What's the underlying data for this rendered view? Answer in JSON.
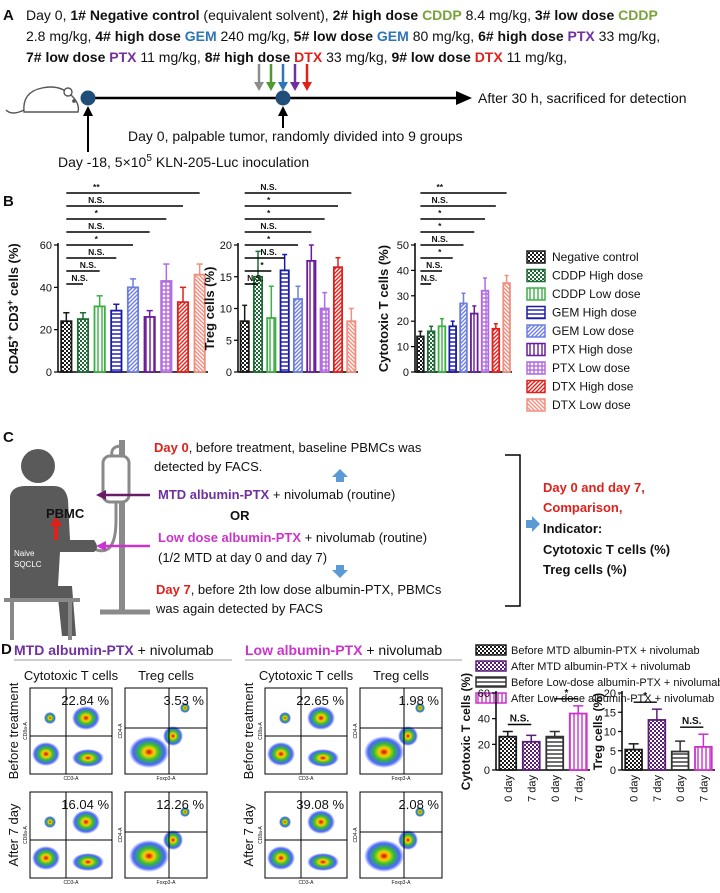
{
  "labels": {
    "a": "A",
    "b": "B",
    "c": "C",
    "d": "D"
  },
  "panel_a": {
    "protocol": [
      [
        "Day 0,",
        "1# Negative control",
        "(equivalent solvent),",
        "2# high dose",
        "CDDP",
        "8.4 mg/kg,",
        "3# low dose",
        "CDDP"
      ],
      [
        "2.8 mg/kg,",
        "4# high dose",
        "GEM",
        "240 mg/kg,",
        "5# low dose",
        "GEM",
        "80 mg/kg,",
        "6# high dose",
        "PTX",
        "33 mg/kg,"
      ],
      [
        "7# low dose",
        "PTX",
        "11 mg/kg,",
        "8# high dose",
        "DTX",
        "33 mg/kg,",
        "9# low dose",
        "DTX",
        "11 mg/kg,"
      ]
    ],
    "endpoint": "After 30 h, sacrificed for detection",
    "grouping": "Day 0, palpable tumor, randomly divided into 9 groups",
    "inoculation": [
      "Day -18, 5×10",
      "5",
      "KLN-205-Luc inoculation"
    ]
  },
  "panel_b": {
    "legend": [
      {
        "name": "Negative control",
        "color": "#1a1a1a"
      },
      {
        "name": "CDDP High dose",
        "color": "#1e6b35"
      },
      {
        "name": "CDDP Low dose",
        "color": "#3cb043"
      },
      {
        "name": "GEM High dose",
        "color": "#1a1aa6"
      },
      {
        "name": "GEM Low dose",
        "color": "#6d7fe0"
      },
      {
        "name": "PTX High dose",
        "color": "#6a1b9a"
      },
      {
        "name": "PTX Low dose",
        "color": "#b36ae2"
      },
      {
        "name": "DTX High dose",
        "color": "#e0201b"
      },
      {
        "name": "DTX Low dose",
        "color": "#f08f80"
      }
    ]
  },
  "panel_c": {
    "day0": [
      "Day 0",
      ", before treatment, baseline PBMCs was",
      "detected by FACS."
    ],
    "mtd": [
      "MTD albumin-PTX",
      "+ nivolumab (routine)"
    ],
    "or": "OR",
    "low": [
      "Low dose albumin-PTX",
      "+ nivolumab (routine)"
    ],
    "low_note": "(1/2 MTD at day 0 and day 7)",
    "day7": [
      "Day 7",
      ", before 2th low dose albumin-PTX, PBMCs",
      "was again detected by FACS"
    ],
    "patient": [
      "PBMC",
      "Naive",
      "SQCLC"
    ],
    "summary": [
      "Day 0 and day 7,",
      "Comparison,",
      "Indicator:",
      "Cytotoxic T cells (%)",
      "Treg cells (%)"
    ]
  },
  "panel_d": {
    "groups": [
      [
        "MTD albumin-PTX",
        "+ nivolumab"
      ],
      [
        "Low albumin-PTX",
        "+ nivolumab"
      ]
    ],
    "columns": [
      "Cytotoxic T cells",
      "Treg cells"
    ],
    "rows": [
      "Before treatment",
      "After 7 day"
    ],
    "axes": {
      "cd8": "CD8a-A",
      "cd3": "CD3-A",
      "cd4": "CD4-A",
      "foxp3": "Foxp3-A"
    },
    "percentages": [
      [
        "22.84 %",
        "3.53 %",
        "22.65 %",
        "1.98 %"
      ],
      [
        "16.04 %",
        "12.26 %",
        "39.08 %",
        "2.08 %"
      ]
    ],
    "legend": [
      {
        "name": "Before MTD albumin-PTX + nivolumab",
        "color": "#1a1a1a"
      },
      {
        "name": "After MTD albumin-PTX + nivolumab",
        "color": "#5b1f7a"
      },
      {
        "name": "Before Low-dose albumin-PTX + nivolumab",
        "color": "#333333"
      },
      {
        "name": "After Low-dose albumin-PTX + nivolumab",
        "color": "#cc33cc"
      }
    ]
  },
  "chart_data": [
    {
      "type": "bar",
      "ylabel": [
        "CD45",
        "+",
        "CD3",
        "+",
        "cells (%)"
      ],
      "values": [
        24,
        25,
        31,
        29,
        40,
        26,
        43,
        33,
        46
      ],
      "errors": [
        4,
        3,
        5,
        3,
        4,
        3,
        8,
        7,
        5
      ],
      "ylim": [
        0,
        60
      ],
      "yticks": [
        0,
        20,
        40,
        60
      ],
      "significance": [
        "N.S.",
        "N.S.",
        "N.S.",
        "*",
        "N.S.",
        "*",
        "N.S.",
        "**"
      ]
    },
    {
      "type": "bar",
      "ylabel": "Treg cells (%)",
      "values": [
        8,
        15,
        8.5,
        16,
        11.5,
        17.5,
        10,
        16.5,
        8
      ],
      "errors": [
        2.5,
        4,
        5,
        2.5,
        2,
        2.5,
        2.5,
        1.5,
        2
      ],
      "ylim": [
        0,
        20
      ],
      "yticks": [
        0,
        5,
        10,
        15,
        20
      ],
      "significance": [
        "N.S.",
        "*",
        "N.S.",
        "*",
        "N.S.",
        "*",
        "*",
        "N.S."
      ]
    },
    {
      "type": "bar",
      "ylabel": "Cytotoxic T cells (%)",
      "values": [
        14,
        16,
        18,
        18,
        27,
        23,
        32,
        17,
        35
      ],
      "errors": [
        2,
        2,
        3,
        2,
        4,
        3,
        5,
        2,
        3
      ],
      "ylim": [
        0,
        50
      ],
      "yticks": [
        0,
        10,
        20,
        30,
        40,
        50
      ],
      "significance": [
        "N.S.",
        "N.S.",
        "*",
        "N.S.",
        "*",
        "*",
        "N.S.",
        "**"
      ]
    },
    {
      "type": "bar",
      "ylabel": "Cytotoxic T cells (%)",
      "categories": [
        "0 day",
        "7 day",
        "0 day",
        "7 day"
      ],
      "values": [
        26,
        22,
        26,
        44
      ],
      "errors": [
        4,
        5,
        4,
        6
      ],
      "ylim": [
        0,
        60
      ],
      "yticks": [
        0,
        20,
        40,
        60
      ],
      "significance": [
        "N.S.",
        "*"
      ]
    },
    {
      "type": "bar",
      "ylabel": "Treg cells (%)",
      "categories": [
        "0 day",
        "7 day",
        "0 day",
        "7 day"
      ],
      "values": [
        5.3,
        13,
        4.8,
        6
      ],
      "errors": [
        1.5,
        2.8,
        2.7,
        3.3
      ],
      "ylim": [
        0,
        20
      ],
      "yticks": [
        0,
        5,
        10,
        15,
        20
      ],
      "significance": [
        "*",
        "N.S."
      ]
    }
  ]
}
